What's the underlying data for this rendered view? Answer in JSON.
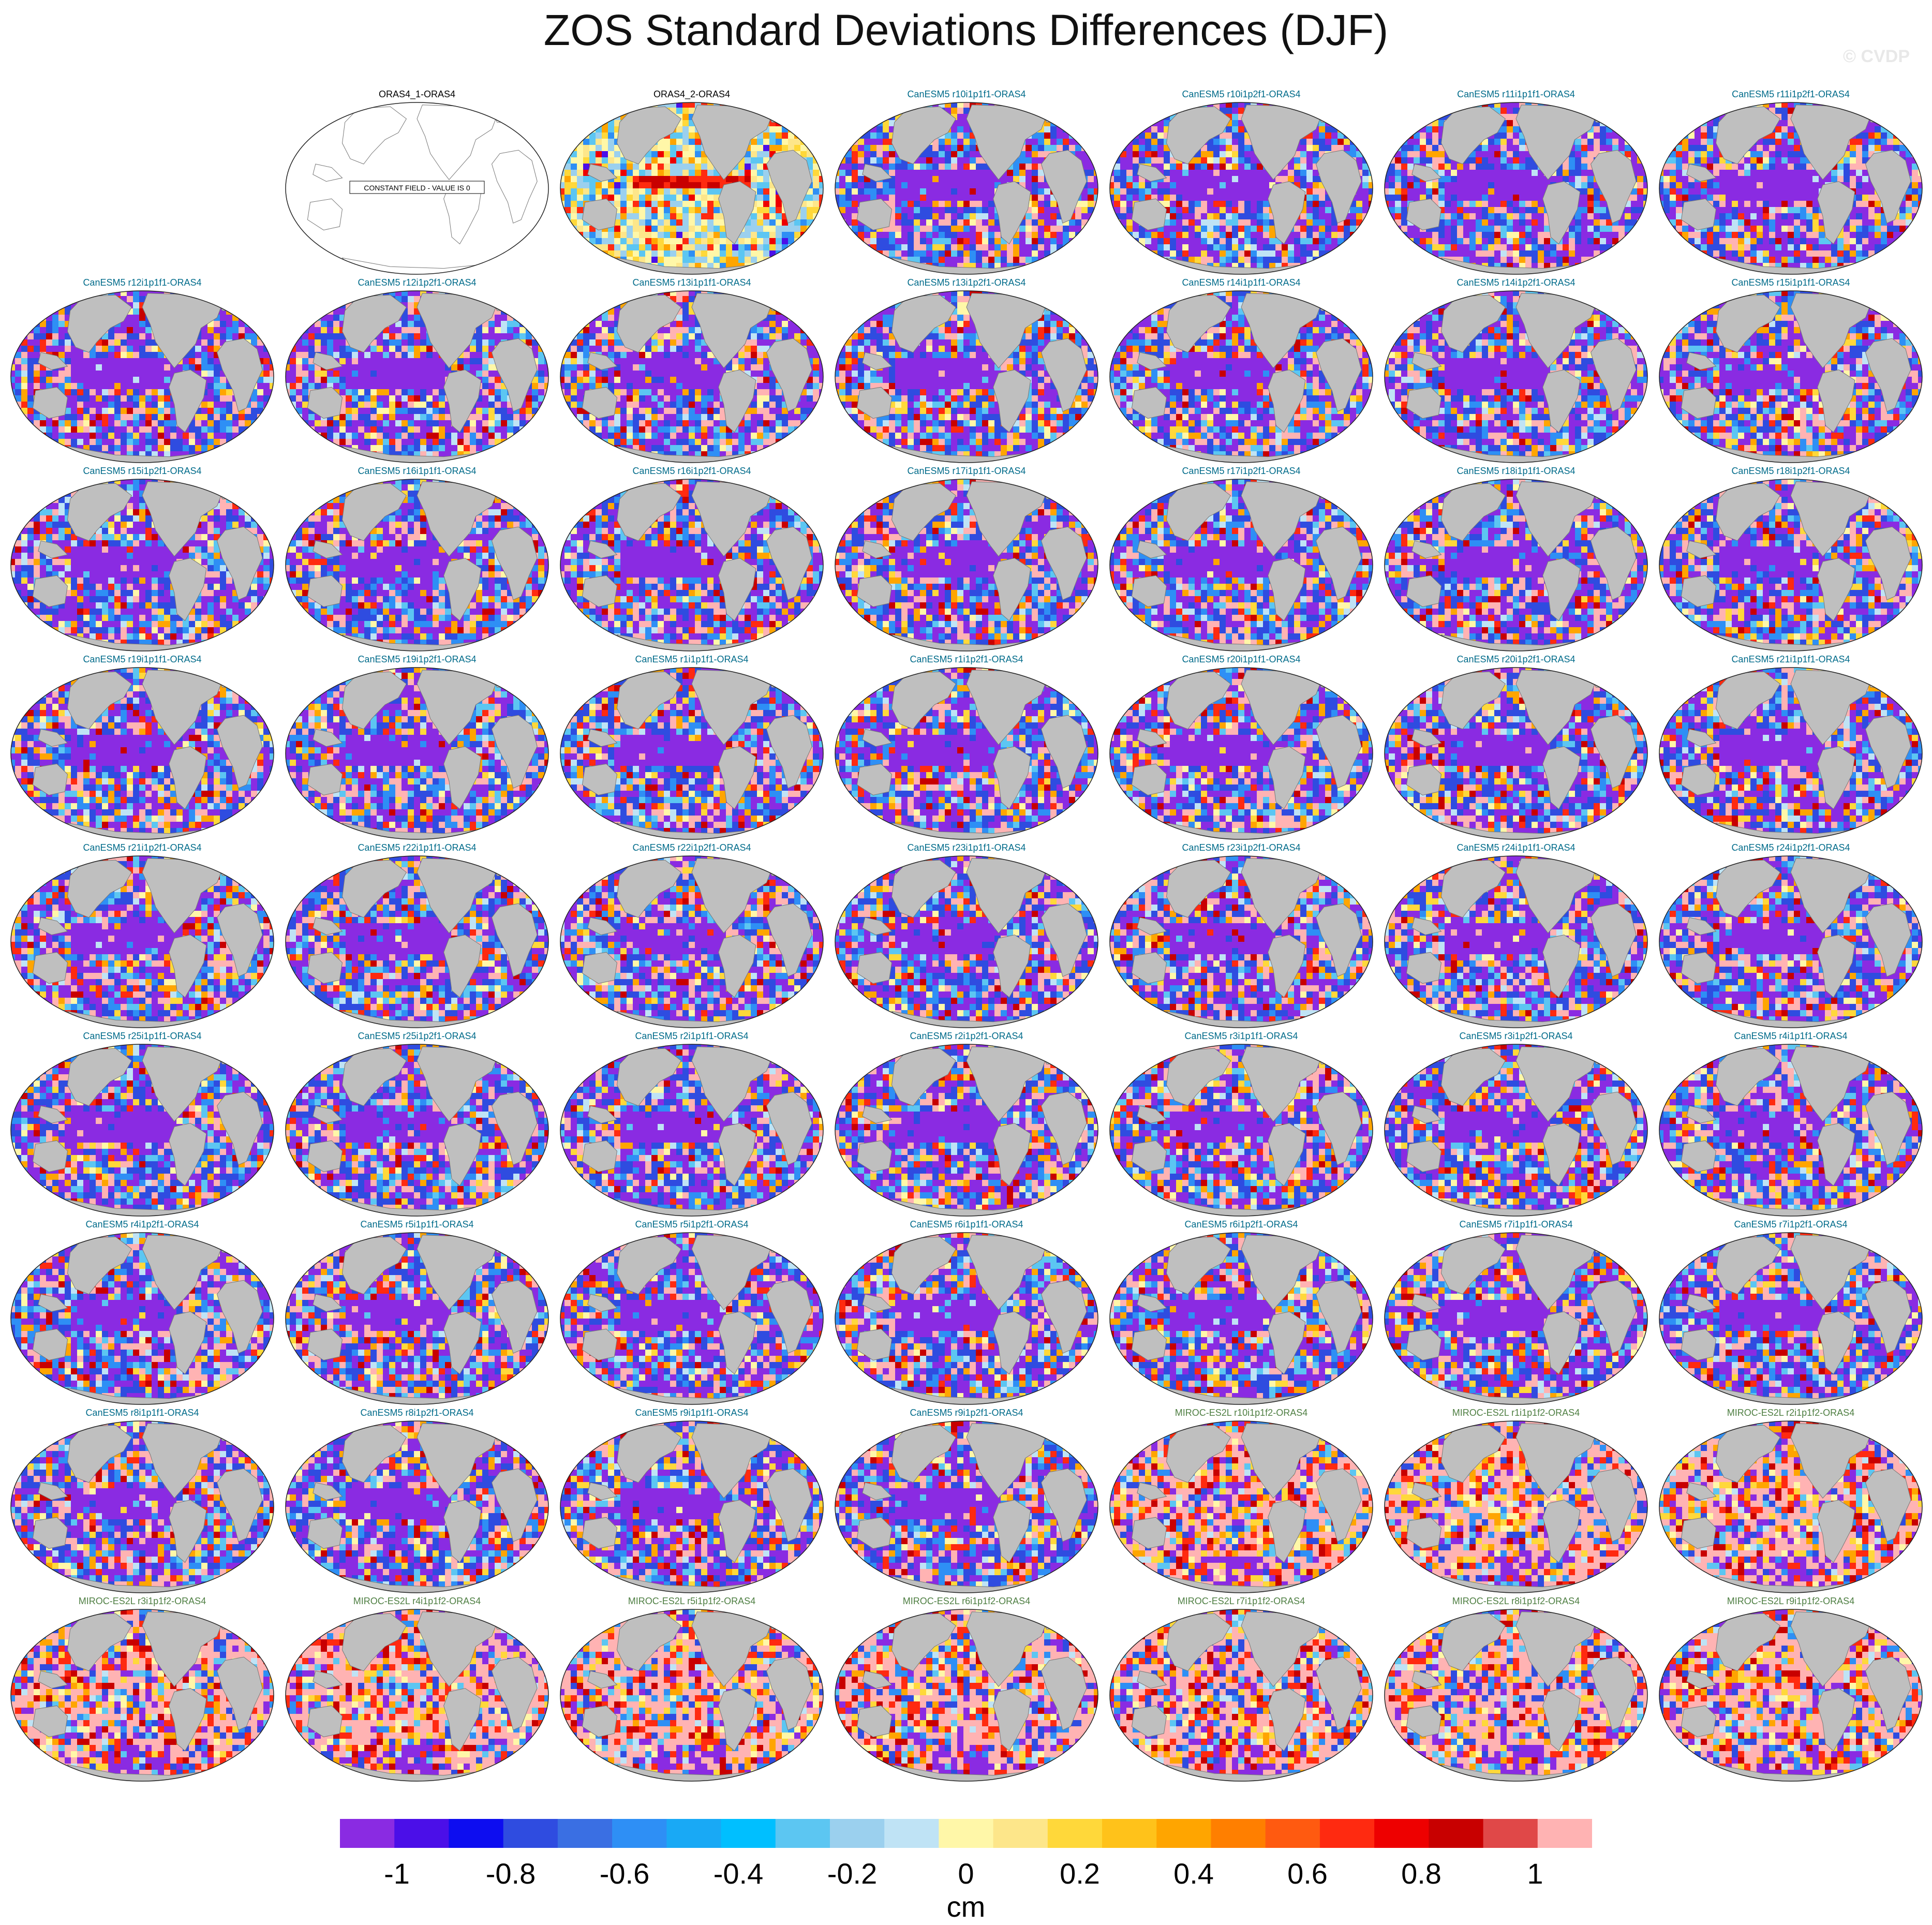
{
  "title": "ZOS Standard Deviations Differences (DJF)",
  "watermark": "© CVDP",
  "grid": {
    "columns": 7,
    "rows": 9
  },
  "colors": {
    "land": "#bfbfbf",
    "panel_title_obs": "#000000",
    "panel_title_canesm5": "#006b8a",
    "panel_title_miroc": "#4f7f43"
  },
  "panels": [
    {
      "label": "",
      "empty": true
    },
    {
      "label": "ORAS4_1-ORAS4",
      "kind": "obs",
      "constant_field": true,
      "note": "CONSTANT FIELD - VALUE IS 0"
    },
    {
      "label": "ORAS4_2-ORAS4",
      "kind": "obs2"
    },
    {
      "label": "CanESM5 r10i1p1f1-ORAS4",
      "kind": "can"
    },
    {
      "label": "CanESM5 r10i1p2f1-ORAS4",
      "kind": "can"
    },
    {
      "label": "CanESM5 r11i1p1f1-ORAS4",
      "kind": "can"
    },
    {
      "label": "CanESM5 r11i1p2f1-ORAS4",
      "kind": "can"
    },
    {
      "label": "CanESM5 r12i1p1f1-ORAS4",
      "kind": "can"
    },
    {
      "label": "CanESM5 r12i1p2f1-ORAS4",
      "kind": "can"
    },
    {
      "label": "CanESM5 r13i1p1f1-ORAS4",
      "kind": "can"
    },
    {
      "label": "CanESM5 r13i1p2f1-ORAS4",
      "kind": "can"
    },
    {
      "label": "CanESM5 r14i1p1f1-ORAS4",
      "kind": "can"
    },
    {
      "label": "CanESM5 r14i1p2f1-ORAS4",
      "kind": "can"
    },
    {
      "label": "CanESM5 r15i1p1f1-ORAS4",
      "kind": "can"
    },
    {
      "label": "CanESM5 r15i1p2f1-ORAS4",
      "kind": "can"
    },
    {
      "label": "CanESM5 r16i1p1f1-ORAS4",
      "kind": "can"
    },
    {
      "label": "CanESM5 r16i1p2f1-ORAS4",
      "kind": "can"
    },
    {
      "label": "CanESM5 r17i1p1f1-ORAS4",
      "kind": "can"
    },
    {
      "label": "CanESM5 r17i1p2f1-ORAS4",
      "kind": "can"
    },
    {
      "label": "CanESM5 r18i1p1f1-ORAS4",
      "kind": "can"
    },
    {
      "label": "CanESM5 r18i1p2f1-ORAS4",
      "kind": "can"
    },
    {
      "label": "CanESM5 r19i1p1f1-ORAS4",
      "kind": "can"
    },
    {
      "label": "CanESM5 r19i1p2f1-ORAS4",
      "kind": "can"
    },
    {
      "label": "CanESM5 r1i1p1f1-ORAS4",
      "kind": "can"
    },
    {
      "label": "CanESM5 r1i1p2f1-ORAS4",
      "kind": "can"
    },
    {
      "label": "CanESM5 r20i1p1f1-ORAS4",
      "kind": "can"
    },
    {
      "label": "CanESM5 r20i1p2f1-ORAS4",
      "kind": "can"
    },
    {
      "label": "CanESM5 r21i1p1f1-ORAS4",
      "kind": "can"
    },
    {
      "label": "CanESM5 r21i1p2f1-ORAS4",
      "kind": "can"
    },
    {
      "label": "CanESM5 r22i1p1f1-ORAS4",
      "kind": "can"
    },
    {
      "label": "CanESM5 r22i1p2f1-ORAS4",
      "kind": "can"
    },
    {
      "label": "CanESM5 r23i1p1f1-ORAS4",
      "kind": "can"
    },
    {
      "label": "CanESM5 r23i1p2f1-ORAS4",
      "kind": "can"
    },
    {
      "label": "CanESM5 r24i1p1f1-ORAS4",
      "kind": "can"
    },
    {
      "label": "CanESM5 r24i1p2f1-ORAS4",
      "kind": "can"
    },
    {
      "label": "CanESM5 r25i1p1f1-ORAS4",
      "kind": "can"
    },
    {
      "label": "CanESM5 r25i1p2f1-ORAS4",
      "kind": "can"
    },
    {
      "label": "CanESM5 r2i1p1f1-ORAS4",
      "kind": "can"
    },
    {
      "label": "CanESM5 r2i1p2f1-ORAS4",
      "kind": "can"
    },
    {
      "label": "CanESM5 r3i1p1f1-ORAS4",
      "kind": "can"
    },
    {
      "label": "CanESM5 r3i1p2f1-ORAS4",
      "kind": "can"
    },
    {
      "label": "CanESM5 r4i1p1f1-ORAS4",
      "kind": "can"
    },
    {
      "label": "CanESM5 r4i1p2f1-ORAS4",
      "kind": "can"
    },
    {
      "label": "CanESM5 r5i1p1f1-ORAS4",
      "kind": "can"
    },
    {
      "label": "CanESM5 r5i1p2f1-ORAS4",
      "kind": "can"
    },
    {
      "label": "CanESM5 r6i1p1f1-ORAS4",
      "kind": "can"
    },
    {
      "label": "CanESM5 r6i1p2f1-ORAS4",
      "kind": "can"
    },
    {
      "label": "CanESM5 r7i1p1f1-ORAS4",
      "kind": "can"
    },
    {
      "label": "CanESM5 r7i1p2f1-ORAS4",
      "kind": "can"
    },
    {
      "label": "CanESM5 r8i1p1f1-ORAS4",
      "kind": "can"
    },
    {
      "label": "CanESM5 r8i1p2f1-ORAS4",
      "kind": "can"
    },
    {
      "label": "CanESM5 r9i1p1f1-ORAS4",
      "kind": "can"
    },
    {
      "label": "CanESM5 r9i1p2f1-ORAS4",
      "kind": "can"
    },
    {
      "label": "MIROC-ES2L r10i1p1f2-ORAS4",
      "kind": "mir"
    },
    {
      "label": "MIROC-ES2L r1i1p1f2-ORAS4",
      "kind": "mir"
    },
    {
      "label": "MIROC-ES2L r2i1p1f2-ORAS4",
      "kind": "mir"
    },
    {
      "label": "MIROC-ES2L r3i1p1f2-ORAS4",
      "kind": "mir"
    },
    {
      "label": "MIROC-ES2L r4i1p1f2-ORAS4",
      "kind": "mir"
    },
    {
      "label": "MIROC-ES2L r5i1p1f2-ORAS4",
      "kind": "mir"
    },
    {
      "label": "MIROC-ES2L r6i1p1f2-ORAS4",
      "kind": "mir"
    },
    {
      "label": "MIROC-ES2L r7i1p1f2-ORAS4",
      "kind": "mir"
    },
    {
      "label": "MIROC-ES2L r8i1p1f2-ORAS4",
      "kind": "mir"
    },
    {
      "label": "MIROC-ES2L r9i1p1f2-ORAS4",
      "kind": "mir"
    }
  ],
  "colorbar": {
    "colors": [
      "#8a2be2",
      "#4b0fe8",
      "#0d0df0",
      "#2f4ce0",
      "#3a6fe3",
      "#2e8ff5",
      "#19a9f5",
      "#00bfff",
      "#5cc6f2",
      "#9bd0ee",
      "#bfe3f5",
      "#fff7a8",
      "#fde68a",
      "#ffd83a",
      "#ffc21a",
      "#ffa500",
      "#ff7f00",
      "#ff5a10",
      "#ff2a10",
      "#ee0000",
      "#c80000",
      "#e04848",
      "#ffb3b3"
    ],
    "tick_labels": [
      "-1",
      "-0.8",
      "-0.6",
      "-0.4",
      "-0.2",
      "0",
      "0.2",
      "0.4",
      "0.6",
      "0.8",
      "1"
    ],
    "tick_values": [
      -1,
      -0.8,
      -0.6,
      -0.4,
      -0.2,
      0,
      0.2,
      0.4,
      0.6,
      0.8,
      1
    ],
    "min": -1.1,
    "max": 1.1,
    "units": "cm"
  }
}
